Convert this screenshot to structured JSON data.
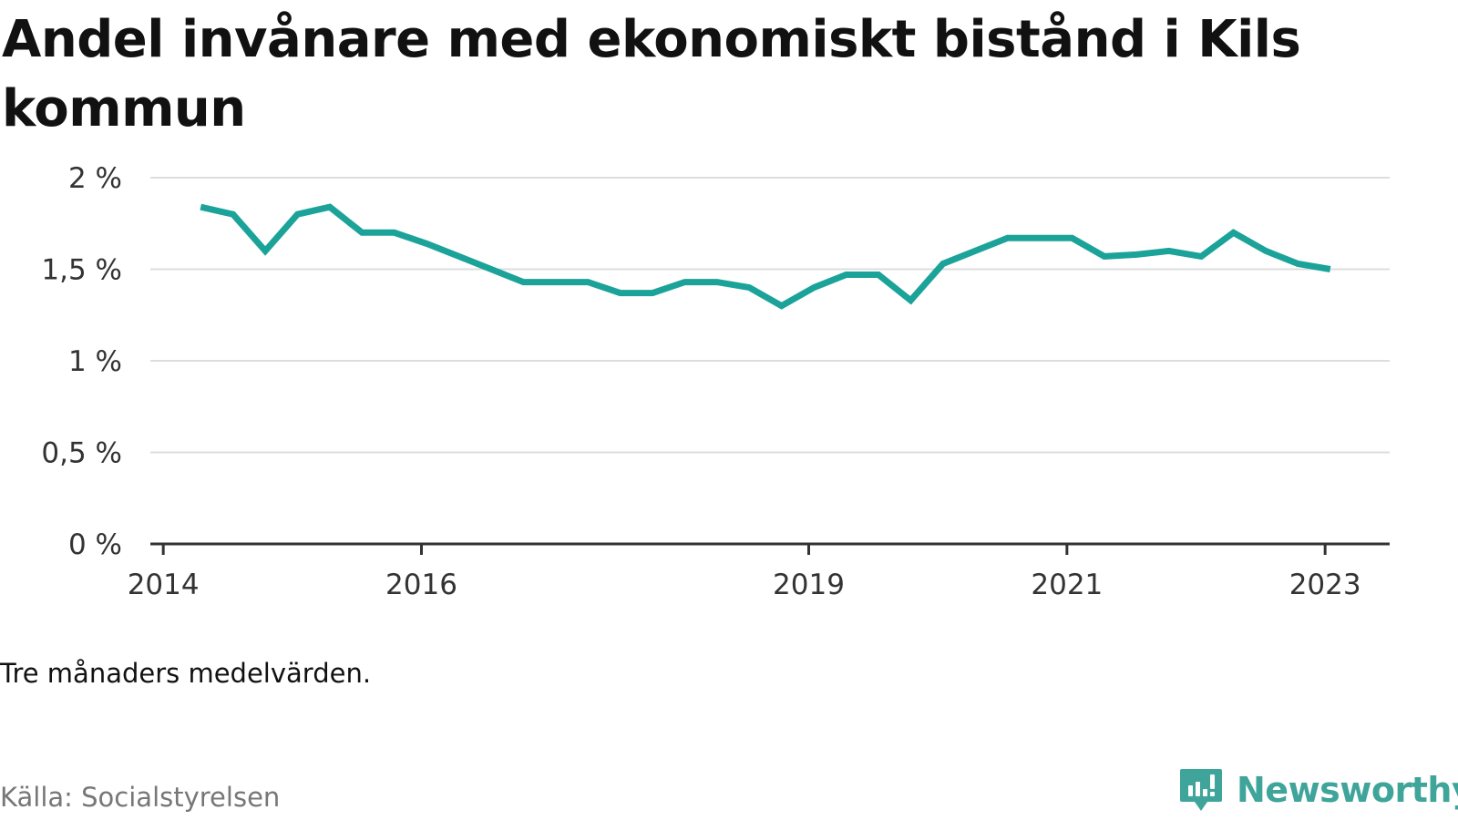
{
  "title": "Andel invånare med ekonomiskt bistånd i Kils kommun",
  "note": "Tre månaders medelvärden.",
  "source": "Källa: Socialstyrelsen",
  "brand": {
    "name": "Newsworthy",
    "icon": "newsworthy-logo-icon",
    "color": "#3fa49a"
  },
  "chart_data": {
    "type": "line",
    "title": "Andel invånare med ekonomiskt bistånd i Kils kommun",
    "xlabel": "",
    "ylabel": "",
    "ylim": [
      0,
      2
    ],
    "xlim": [
      2013.9,
      2023.5
    ],
    "y_ticks": [
      {
        "value": 0,
        "label": "0 %"
      },
      {
        "value": 0.5,
        "label": "0,5 %"
      },
      {
        "value": 1,
        "label": "1 %"
      },
      {
        "value": 1.5,
        "label": "1,5 %"
      },
      {
        "value": 2,
        "label": "2 %"
      }
    ],
    "x_ticks": [
      {
        "value": 2014,
        "label": "2014"
      },
      {
        "value": 2016,
        "label": "2016"
      },
      {
        "value": 2019,
        "label": "2019"
      },
      {
        "value": 2021,
        "label": "2021"
      },
      {
        "value": 2023,
        "label": "2023"
      }
    ],
    "grid": true,
    "color": "#1ba399",
    "series": [
      {
        "x": [
          2014.29,
          2014.54,
          2014.79,
          2015.04,
          2015.29,
          2015.54,
          2015.79,
          2016.04,
          2016.29,
          2016.54,
          2016.79,
          2017.04,
          2017.29,
          2017.54,
          2017.79,
          2018.04,
          2018.29,
          2018.54,
          2018.79,
          2019.04,
          2019.29,
          2019.54,
          2019.79,
          2020.04,
          2020.29,
          2020.54,
          2020.79,
          2021.04,
          2021.29,
          2021.54,
          2021.79,
          2022.04,
          2022.29,
          2022.54,
          2022.79,
          2023.04
        ],
        "values": [
          1.84,
          1.8,
          1.6,
          1.8,
          1.84,
          1.7,
          1.7,
          1.64,
          1.57,
          1.5,
          1.43,
          1.43,
          1.43,
          1.37,
          1.37,
          1.43,
          1.43,
          1.4,
          1.3,
          1.4,
          1.47,
          1.47,
          1.33,
          1.53,
          1.6,
          1.67,
          1.67,
          1.67,
          1.57,
          1.58,
          1.6,
          1.57,
          1.7,
          1.6,
          1.53,
          1.5
        ]
      }
    ]
  }
}
